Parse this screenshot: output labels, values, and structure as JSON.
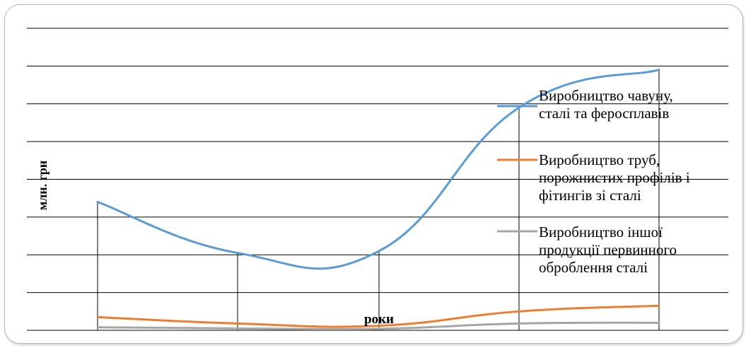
{
  "chart_data": {
    "type": "line",
    "ylabel": "млн. грн",
    "xlabel": "роки",
    "categories": [
      "",
      "",
      "",
      "",
      ""
    ],
    "series": [
      {
        "name": "Виробництво чавуну, сталі та феросплавів",
        "color": "#5b9bd5",
        "values": [
          3.4,
          2.05,
          2.1,
          5.9,
          6.9
        ]
      },
      {
        "name": "Виробництво труб, порожнистих профілів і фітингів зі сталі",
        "color": "#ed7d31",
        "values": [
          0.35,
          0.18,
          0.12,
          0.5,
          0.65
        ]
      },
      {
        "name": "Виробництво іншої продукції первинного оброблення сталі",
        "color": "#a5a5a5",
        "values": [
          0.08,
          0.05,
          0.04,
          0.18,
          0.2
        ]
      }
    ],
    "ylim": [
      0,
      8
    ],
    "grid": true,
    "legend": "right"
  }
}
